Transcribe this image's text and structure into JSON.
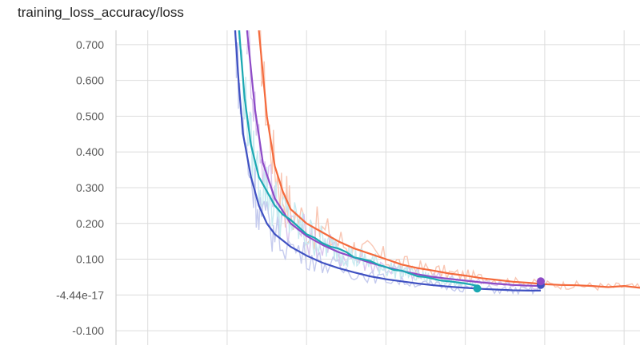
{
  "card": {
    "title": "training_loss_accuracy/loss"
  },
  "chart_data": {
    "type": "line",
    "title": "training_loss_accuracy/loss",
    "xlabel": "",
    "ylabel": "",
    "ylim": [
      -0.14,
      0.74
    ],
    "xlim": [
      0,
      6.6
    ],
    "y_ticks": [
      -0.1,
      0,
      0.1,
      0.2,
      0.3,
      0.4,
      0.5,
      0.6,
      0.7
    ],
    "y_tick_labels": [
      "-0.100",
      "-4.44e-17",
      "0.100",
      "0.200",
      "0.300",
      "0.400",
      "0.500",
      "0.600",
      "0.700"
    ],
    "x_gridlines": [
      0.4,
      1.4,
      2.4,
      3.4,
      4.4,
      5.4,
      6.4
    ],
    "grid": true,
    "series": [
      {
        "color": "#f46a3c",
        "raw_color": "#f9c6b3",
        "values": [
          [
            1.8,
            0.74
          ],
          [
            1.9,
            0.5
          ],
          [
            2.0,
            0.36
          ],
          [
            2.1,
            0.29
          ],
          [
            2.2,
            0.24
          ],
          [
            2.4,
            0.2
          ],
          [
            2.6,
            0.175
          ],
          [
            2.8,
            0.15
          ],
          [
            3.0,
            0.13
          ],
          [
            3.2,
            0.115
          ],
          [
            3.4,
            0.1
          ],
          [
            3.6,
            0.085
          ],
          [
            3.8,
            0.075
          ],
          [
            4.0,
            0.068
          ],
          [
            4.2,
            0.06
          ],
          [
            4.4,
            0.054
          ],
          [
            4.6,
            0.047
          ],
          [
            4.8,
            0.042
          ],
          [
            5.0,
            0.037
          ],
          [
            5.2,
            0.034
          ],
          [
            5.4,
            0.03
          ],
          [
            5.6,
            0.028
          ],
          [
            5.8,
            0.027
          ],
          [
            6.0,
            0.025
          ],
          [
            6.2,
            0.022
          ],
          [
            6.4,
            0.025
          ],
          [
            6.6,
            0.02
          ]
        ]
      },
      {
        "color": "#8e4bc7",
        "raw_color": "#d9c4ee",
        "values": [
          [
            1.65,
            0.74
          ],
          [
            1.75,
            0.52
          ],
          [
            1.85,
            0.37
          ],
          [
            2.0,
            0.27
          ],
          [
            2.2,
            0.2
          ],
          [
            2.4,
            0.165
          ],
          [
            2.6,
            0.14
          ],
          [
            2.8,
            0.12
          ],
          [
            3.0,
            0.105
          ],
          [
            3.2,
            0.09
          ],
          [
            3.4,
            0.078
          ],
          [
            3.6,
            0.067
          ],
          [
            3.8,
            0.058
          ],
          [
            4.0,
            0.05
          ],
          [
            4.2,
            0.045
          ],
          [
            4.4,
            0.04
          ],
          [
            4.6,
            0.035
          ],
          [
            4.8,
            0.031
          ],
          [
            5.0,
            0.028
          ],
          [
            5.2,
            0.026
          ],
          [
            5.35,
            0.025
          ]
        ]
      },
      {
        "color": "#1ba8b2",
        "raw_color": "#c7eaf0",
        "values": [
          [
            1.55,
            0.74
          ],
          [
            1.62,
            0.55
          ],
          [
            1.7,
            0.42
          ],
          [
            1.8,
            0.33
          ],
          [
            1.9,
            0.29
          ],
          [
            2.0,
            0.25
          ],
          [
            2.1,
            0.225
          ],
          [
            2.2,
            0.21
          ],
          [
            2.3,
            0.19
          ],
          [
            2.4,
            0.17
          ],
          [
            2.5,
            0.16
          ],
          [
            2.6,
            0.145
          ],
          [
            2.7,
            0.135
          ],
          [
            2.8,
            0.13
          ],
          [
            2.9,
            0.12
          ],
          [
            3.0,
            0.105
          ],
          [
            3.1,
            0.1
          ],
          [
            3.2,
            0.095
          ],
          [
            3.3,
            0.085
          ],
          [
            3.4,
            0.078
          ],
          [
            3.5,
            0.07
          ],
          [
            3.6,
            0.068
          ],
          [
            3.7,
            0.06
          ],
          [
            3.8,
            0.052
          ],
          [
            3.9,
            0.05
          ],
          [
            4.0,
            0.045
          ],
          [
            4.1,
            0.04
          ],
          [
            4.2,
            0.038
          ],
          [
            4.3,
            0.035
          ],
          [
            4.4,
            0.032
          ],
          [
            4.5,
            0.028
          ],
          [
            4.55,
            0.025
          ]
        ]
      },
      {
        "color": "#3f51c2",
        "raw_color": "#c5cbee",
        "values": [
          [
            1.5,
            0.74
          ],
          [
            1.55,
            0.58
          ],
          [
            1.6,
            0.45
          ],
          [
            1.7,
            0.33
          ],
          [
            1.8,
            0.25
          ],
          [
            1.9,
            0.2
          ],
          [
            2.0,
            0.17
          ],
          [
            2.2,
            0.135
          ],
          [
            2.4,
            0.11
          ],
          [
            2.6,
            0.09
          ],
          [
            2.8,
            0.075
          ],
          [
            3.0,
            0.063
          ],
          [
            3.2,
            0.052
          ],
          [
            3.4,
            0.044
          ],
          [
            3.6,
            0.038
          ],
          [
            3.8,
            0.032
          ],
          [
            4.0,
            0.027
          ],
          [
            4.2,
            0.023
          ],
          [
            4.4,
            0.02
          ],
          [
            4.6,
            0.017
          ],
          [
            4.8,
            0.015
          ],
          [
            5.0,
            0.013
          ],
          [
            5.2,
            0.012
          ],
          [
            5.35,
            0.012
          ]
        ]
      }
    ],
    "end_markers": [
      {
        "color": "#1ba8b2",
        "x": 4.55,
        "y": 0.018
      },
      {
        "color": "#3f51c2",
        "x": 5.35,
        "y": 0.028
      },
      {
        "color": "#8e4bc7",
        "x": 5.35,
        "y": 0.038
      }
    ]
  }
}
